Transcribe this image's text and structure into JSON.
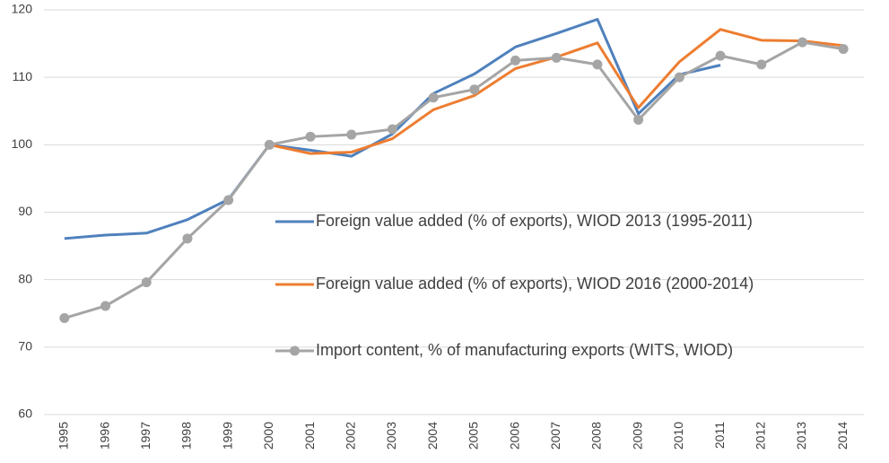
{
  "chart_data": {
    "type": "line",
    "categories": [
      "1995",
      "1996",
      "1997",
      "1998",
      "1999",
      "2000",
      "2001",
      "2002",
      "2003",
      "2004",
      "2005",
      "2006",
      "2007",
      "2008",
      "2009",
      "2010",
      "2011",
      "2012",
      "2013",
      "2014"
    ],
    "series": [
      {
        "name": "Foreign value added (% of exports), WIOD 2013 (1995-2011)",
        "color": "#4f81bd",
        "marker": false,
        "values": [
          86.1,
          86.6,
          86.9,
          88.9,
          91.9,
          100.0,
          99.2,
          98.3,
          101.6,
          107.6,
          110.5,
          114.5,
          116.5,
          118.6,
          104.6,
          110.4,
          111.8,
          null,
          null,
          null
        ]
      },
      {
        "name": "Foreign value added (% of exports), WIOD 2016 (2000-2014)",
        "color": "#ed7d31",
        "marker": false,
        "values": [
          null,
          null,
          null,
          null,
          null,
          100.0,
          98.7,
          98.9,
          100.9,
          105.2,
          107.3,
          111.3,
          113.0,
          115.1,
          105.5,
          112.3,
          117.1,
          115.5,
          115.4,
          114.7
        ]
      },
      {
        "name": "Import content, % of manufacturing exports (WITS, WIOD)",
        "color": "#a5a5a5",
        "marker": true,
        "values": [
          74.3,
          76.1,
          79.6,
          86.1,
          91.8,
          100.0,
          101.2,
          101.5,
          102.3,
          107.0,
          108.2,
          112.5,
          112.9,
          111.9,
          103.7,
          110.0,
          113.2,
          111.9,
          115.2,
          114.2
        ]
      }
    ],
    "ylim": [
      60,
      120
    ],
    "yticks": [
      60,
      70,
      80,
      90,
      100,
      110,
      120
    ],
    "grid": true
  }
}
